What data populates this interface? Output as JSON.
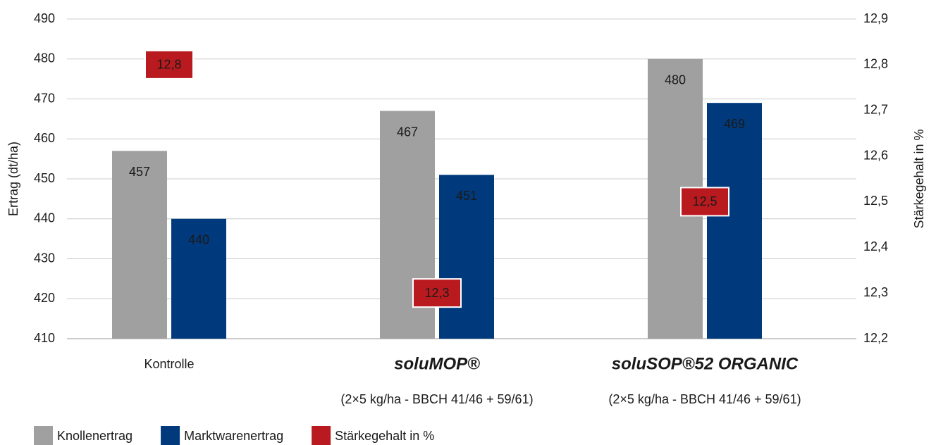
{
  "chart_data": {
    "type": "bar",
    "categories": [
      "Kontrolle",
      "soluMOP®",
      "soluSOP®52 ORGANIC"
    ],
    "category_notes": [
      null,
      "(2×5 kg/ha - BBCH 41/46 + 59/61)",
      "(2×5 kg/ha - BBCH 41/46 + 59/61)"
    ],
    "ylabel": "Ertrag (dt/ha)",
    "y2label": "Stärkegehalt in %",
    "ylim": [
      410,
      490
    ],
    "yticks": [
      410,
      420,
      430,
      440,
      450,
      460,
      470,
      480,
      490
    ],
    "y2lim": [
      12.2,
      12.9
    ],
    "y2ticks": [
      {
        "value": 12.2,
        "label": "12,2"
      },
      {
        "value": 12.3,
        "label": "12,3"
      },
      {
        "value": 12.4,
        "label": "12,4"
      },
      {
        "value": 12.5,
        "label": "12,5"
      },
      {
        "value": 12.6,
        "label": "12,6"
      },
      {
        "value": 12.7,
        "label": "12,7"
      },
      {
        "value": 12.8,
        "label": "12,8"
      },
      {
        "value": 12.9,
        "label": "12,9"
      }
    ],
    "grid": true,
    "series": [
      {
        "name": "Knollenertrag",
        "color": "#a0a0a0",
        "values": [
          457,
          467,
          480
        ]
      },
      {
        "name": "Marktwarenertrag",
        "color": "#003a7d",
        "values": [
          440,
          451,
          469
        ]
      },
      {
        "name": "Stärkegehalt in %",
        "color": "#b81a1f",
        "axis": "y2",
        "values": [
          12.8,
          12.3,
          12.5
        ],
        "value_labels": [
          "12,8",
          "12,3",
          "12,5"
        ]
      }
    ]
  }
}
